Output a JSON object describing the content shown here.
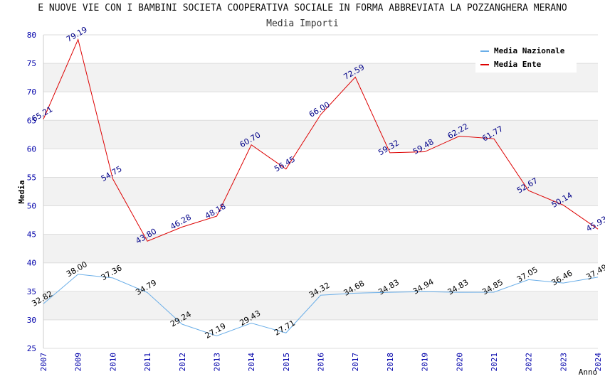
{
  "chart_data": {
    "type": "line",
    "title": "E NUOVE VIE CON I BAMBINI SOCIETA COOPERATIVA SOCIALE IN FORMA ABBREVIATA LA POZZANGHERA MERANO",
    "subtitle": "Media Importi",
    "xlabel": "Anno",
    "ylabel": "Media",
    "ylim": [
      25,
      80
    ],
    "yticks": [
      25,
      30,
      35,
      40,
      45,
      50,
      55,
      60,
      65,
      70,
      75,
      80
    ],
    "categories": [
      "2007",
      "2009",
      "2010",
      "2011",
      "2012",
      "2013",
      "2014",
      "2015",
      "2016",
      "2017",
      "2018",
      "2019",
      "2020",
      "2021",
      "2022",
      "2023",
      "2024"
    ],
    "series": [
      {
        "name": "Media Nazionale",
        "color": "#6aaee8",
        "values": [
          32.82,
          38.0,
          37.36,
          34.79,
          29.24,
          27.19,
          29.43,
          27.71,
          34.32,
          34.68,
          34.83,
          34.94,
          34.83,
          34.85,
          37.05,
          36.46,
          37.49
        ],
        "labels": [
          "32.82",
          "38.00",
          "37.36",
          "34.79",
          "29.24",
          "27.19",
          "29.43",
          "27.71",
          "34.32",
          "34.68",
          "34.83",
          "34.94",
          "34.83",
          "34.85",
          "37.05",
          "36.46",
          "37.49"
        ]
      },
      {
        "name": "Media Ente",
        "color": "#dd0000",
        "values": [
          65.21,
          79.19,
          54.75,
          43.8,
          46.28,
          48.18,
          60.7,
          56.45,
          66.0,
          72.59,
          59.32,
          59.48,
          62.22,
          61.77,
          52.67,
          50.14,
          45.93
        ],
        "labels": [
          "65.21",
          "79.19",
          "54.75",
          "43.80",
          "46.28",
          "48.18",
          "60.70",
          "56.45",
          "66.00",
          "72.59",
          "59.32",
          "59.48",
          "62.22",
          "61.77",
          "52.67",
          "50.14",
          "45.93"
        ]
      }
    ],
    "legend_position": "top-right",
    "grid": true
  }
}
